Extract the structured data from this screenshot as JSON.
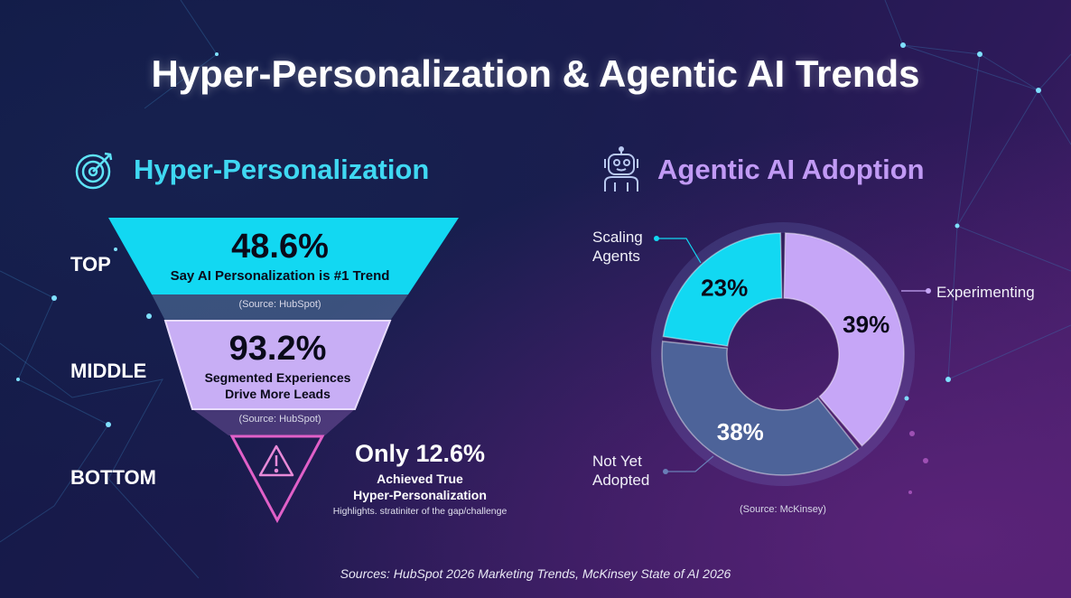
{
  "title": "Hyper-Personalization & Agentic AI Trends",
  "left": {
    "heading": "Hyper-Personalization",
    "icon": "target-icon",
    "levels": [
      {
        "label": "TOP",
        "value": "48.6%",
        "desc": "Say AI Personalization is #1 Trend",
        "source": "(Source: HubSpot)"
      },
      {
        "label": "MIDDLE",
        "value": "93.2%",
        "desc1": "Segmented Experiences",
        "desc2": "Drive More Leads",
        "source": "(Source: HubSpot)"
      },
      {
        "label": "BOTTOM",
        "value": "Only 12.6%",
        "desc1": "Achieved True",
        "desc2": "Hyper-Personalization",
        "note": "Highlights. stratiniter of the gap/challenge",
        "icon": "warning-icon"
      }
    ]
  },
  "right": {
    "heading": "Agentic AI Adoption",
    "icon": "robot-icon",
    "source": "(Source: McKinsey)"
  },
  "footer": "Sources: HubSpot 2026 Marketing Trends, McKinsey State of AI 2026",
  "colors": {
    "cyan": "#12d8f2",
    "lavender": "#c6a6f7",
    "slate": "#4a5f95",
    "pink": "#e060c8"
  },
  "chart_data": {
    "type": "pie",
    "donut": true,
    "slices": [
      {
        "name": "Experimenting",
        "value": 39,
        "label": "39%",
        "color": "#c6a6f7",
        "label_line1": "Experimenting",
        "label_line2": ""
      },
      {
        "name": "Not Yet Adopted",
        "value": 38,
        "label": "38%",
        "color": "#4d6399",
        "label_line1": "Not Yet",
        "label_line2": "Adopted"
      },
      {
        "name": "Scaling Agents",
        "value": 23,
        "label": "23%",
        "color": "#12d8f2",
        "label_line1": "Scaling",
        "label_line2": "Agents"
      }
    ]
  }
}
